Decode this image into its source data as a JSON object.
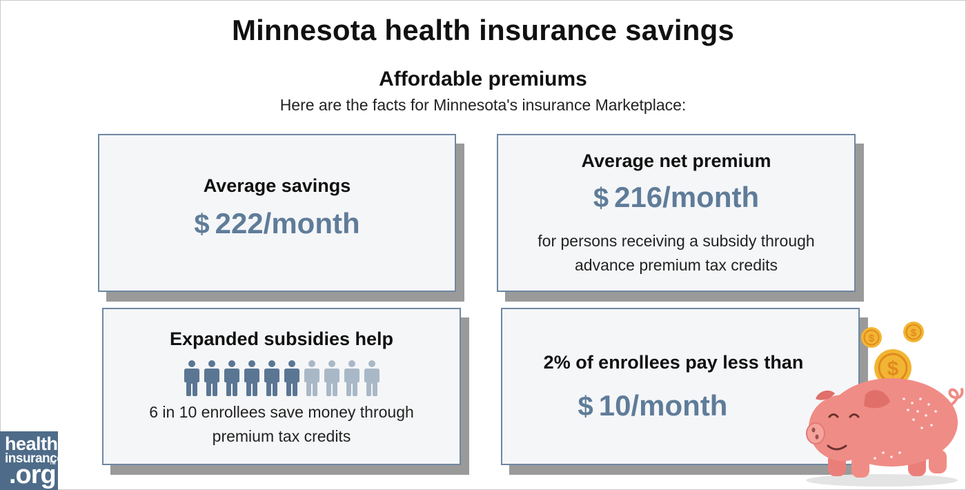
{
  "header": {
    "title": "Minnesota health insurance savings",
    "subtitle": "Affordable premiums",
    "intro": "Here are the facts for Minnesota's insurance Marketplace:"
  },
  "cards": {
    "savings": {
      "label": "Average savings",
      "currency": "$",
      "amount": "222/month"
    },
    "net_premium": {
      "label": "Average net premium",
      "currency": "$",
      "amount": "216/month",
      "note_line1": "for persons receiving a subsidy through",
      "note_line2": "advance premium tax credits"
    },
    "subsidies": {
      "label": "Expanded subsidies help",
      "note_line1": "6 in 10 enrollees save money through",
      "note_line2": "premium tax credits",
      "people_total": 10,
      "people_highlighted": 6
    },
    "low_cost": {
      "label": "2% of enrollees pay less than",
      "currency": "$",
      "amount": "10/month"
    }
  },
  "logo": {
    "line1": "health",
    "line2": "insurance",
    "line3": ".org",
    "mark": "TM"
  },
  "colors": {
    "accent": "#5f7c99",
    "card_border": "#6d87a2",
    "card_bg": "#f5f6f8",
    "person_dark": "#5a7693",
    "person_light": "#a9b8c7",
    "logo_bg": "#4e6c89",
    "pig": "#f08c86",
    "coin": "#f2b533"
  },
  "icons": {
    "person": "person-icon",
    "piggy_bank": "piggy-bank-icon",
    "coin": "dollar-coin-icon"
  }
}
